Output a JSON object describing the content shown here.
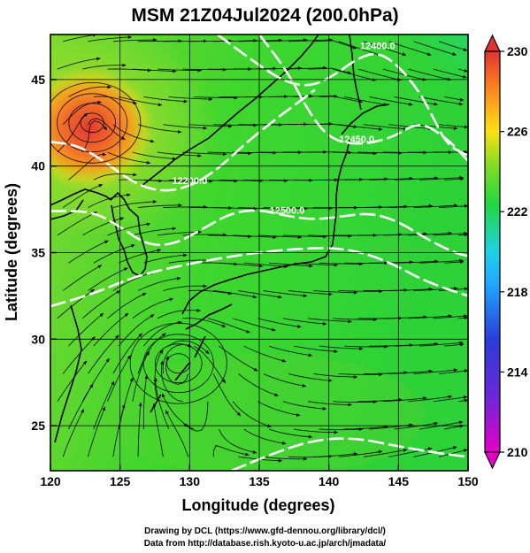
{
  "title": "MSM 21Z04Jul2024 (200.0hPa)",
  "xlabel": "Longitude (degrees)",
  "ylabel": "Latitude  (degrees)",
  "footer": {
    "line1": "Drawing by DCL (https://www.gfd-dennou.org/library/dcl/)",
    "line2": "Data from http://database.rish.kyoto-u.ac.jp/arch/jmadata/"
  },
  "chart_data": {
    "type": "heatmap",
    "title": "MSM 21Z04Jul2024 (200.0hPa)",
    "xlabel": "Longitude (degrees)",
    "ylabel": "Latitude  (degrees)",
    "xlim": [
      120,
      150
    ],
    "ylim": [
      22.4,
      47.6
    ],
    "x_ticks": [
      120,
      125,
      130,
      135,
      140,
      145,
      150
    ],
    "y_ticks": [
      25,
      30,
      35,
      40,
      45
    ],
    "grid": true,
    "colorbar": {
      "range": [
        210,
        230
      ],
      "ticks": [
        210,
        214,
        218,
        222,
        226,
        230
      ],
      "colors": [
        "#e600c8",
        "#2a3cd8",
        "#1fd2ff",
        "#22d640",
        "#88dd22",
        "#ffe014",
        "#ff5a1e",
        "#e03232"
      ]
    },
    "contours": [
      {
        "label": "12200.0",
        "points": [
          [
            120.0,
            41.4
          ],
          [
            122.0,
            41.2
          ],
          [
            124.0,
            40.2
          ],
          [
            126.0,
            39.0
          ],
          [
            128.0,
            38.5
          ],
          [
            130.0,
            38.8
          ],
          [
            132.0,
            39.8
          ],
          [
            134.0,
            41.3
          ],
          [
            136.0,
            42.6
          ],
          [
            137.5,
            43.5
          ],
          [
            139.0,
            44.4
          ]
        ]
      },
      {
        "label": "12400.0",
        "points": [
          [
            132.0,
            47.6
          ],
          [
            135.0,
            45.8
          ],
          [
            137.0,
            44.8
          ],
          [
            138.8,
            44.6
          ],
          [
            140.5,
            45.3
          ],
          [
            142.0,
            46.2
          ],
          [
            143.5,
            46.6
          ],
          [
            145.0,
            45.8
          ],
          [
            146.5,
            44.3
          ],
          [
            147.5,
            42.8
          ],
          [
            148.5,
            41.2
          ],
          [
            150.0,
            40.6
          ]
        ]
      },
      {
        "label": "12450.0",
        "points": [
          [
            135.0,
            47.6
          ],
          [
            137.0,
            45.5
          ],
          [
            138.5,
            43.2
          ],
          [
            140.0,
            41.6
          ],
          [
            142.0,
            41.2
          ],
          [
            144.5,
            41.6
          ],
          [
            146.5,
            42.6
          ],
          [
            148.5,
            41.6
          ],
          [
            150.0,
            40.3
          ]
        ]
      },
      {
        "label": "12500.0",
        "points": [
          [
            120.0,
            37.4
          ],
          [
            123.0,
            37.4
          ],
          [
            125.0,
            36.5
          ],
          [
            127.0,
            35.4
          ],
          [
            129.0,
            35.5
          ],
          [
            131.0,
            36.4
          ],
          [
            133.0,
            37.3
          ],
          [
            135.0,
            37.5
          ],
          [
            137.0,
            37.1
          ],
          [
            139.0,
            36.9
          ],
          [
            141.0,
            37.1
          ],
          [
            143.0,
            37.3
          ],
          [
            145.0,
            36.8
          ],
          [
            147.0,
            35.8
          ],
          [
            149.0,
            35.0
          ],
          [
            150.0,
            34.8
          ]
        ]
      },
      {
        "label": "",
        "points": [
          [
            120.0,
            31.9
          ],
          [
            123.0,
            32.6
          ],
          [
            126.0,
            33.6
          ],
          [
            129.0,
            34.2
          ],
          [
            133.0,
            34.8
          ],
          [
            137.0,
            35.2
          ],
          [
            141.0,
            35.3
          ],
          [
            144.0,
            34.6
          ],
          [
            147.0,
            33.3
          ],
          [
            150.0,
            32.5
          ]
        ]
      },
      {
        "label": "",
        "points": [
          [
            133.0,
            22.4
          ],
          [
            136.0,
            23.4
          ],
          [
            139.0,
            24.2
          ],
          [
            142.0,
            24.3
          ],
          [
            145.0,
            23.8
          ],
          [
            148.0,
            23.4
          ],
          [
            150.0,
            23.2
          ]
        ]
      }
    ],
    "centers": [
      {
        "label": "high",
        "lon": 123.0,
        "lat": 42.5
      },
      {
        "label": "high",
        "lon": 129.2,
        "lat": 28.6
      }
    ]
  }
}
